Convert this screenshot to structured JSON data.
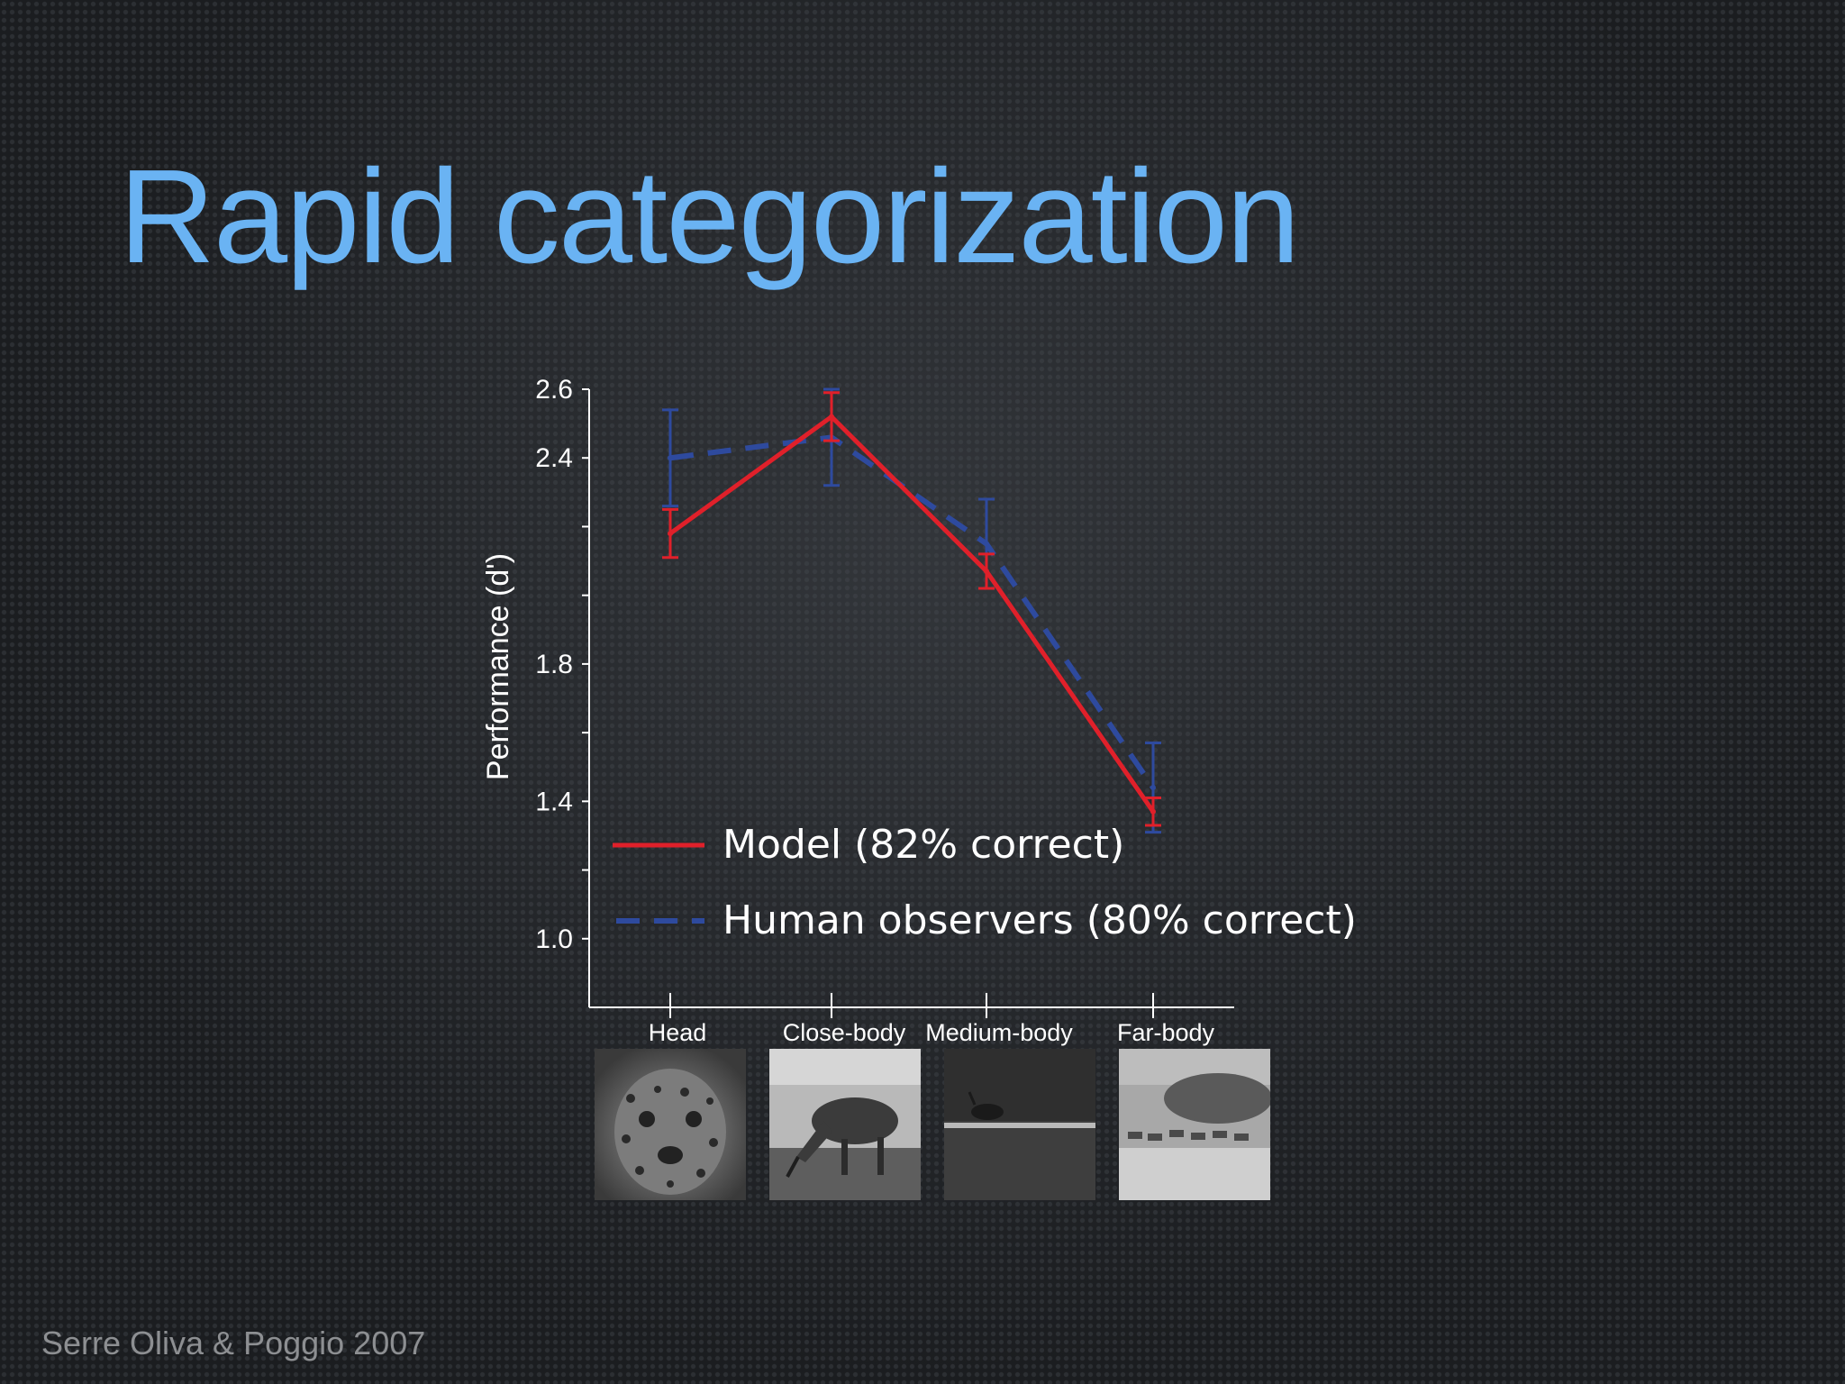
{
  "slide": {
    "title": "Rapid categorization",
    "citation": "Serre Oliva & Poggio 2007"
  },
  "colors": {
    "title": "#6ab3f3",
    "model": "#e0202a",
    "human": "#2e4a9e",
    "axis": "#ffffff"
  },
  "chart_data": {
    "type": "line",
    "title": "",
    "xlabel": "",
    "ylabel": "Performance (d')",
    "ylim": [
      0.8,
      2.6
    ],
    "yticks": [
      1.0,
      1.4,
      1.8,
      2.4,
      2.6
    ],
    "ytick_labels": [
      "1.0",
      "1.4",
      "1.8",
      "2.4",
      "2.6"
    ],
    "categories": [
      "Head",
      "Close-body",
      "Medium-body",
      "Far-body"
    ],
    "series": [
      {
        "name": "Model (82% correct)",
        "style": "solid",
        "color": "#e0202a",
        "values": [
          2.18,
          2.52,
          2.07,
          1.37
        ],
        "error": [
          0.07,
          0.07,
          0.05,
          0.04
        ]
      },
      {
        "name": "Human observers (80% correct)",
        "style": "dashed",
        "color": "#2e4a9e",
        "values": [
          2.4,
          2.46,
          2.15,
          1.44
        ],
        "error": [
          0.14,
          0.14,
          0.13,
          0.13
        ]
      }
    ],
    "legend": [
      {
        "label": "Model (82% correct)",
        "style": "solid"
      },
      {
        "label": "Human observers (80% correct)",
        "style": "dashed"
      }
    ],
    "legend_position": "lower-right inside plot"
  },
  "images": [
    {
      "icon": "leopard-head-photo"
    },
    {
      "icon": "antelope-close-photo"
    },
    {
      "icon": "animal-medium-photo"
    },
    {
      "icon": "herd-far-photo"
    }
  ]
}
